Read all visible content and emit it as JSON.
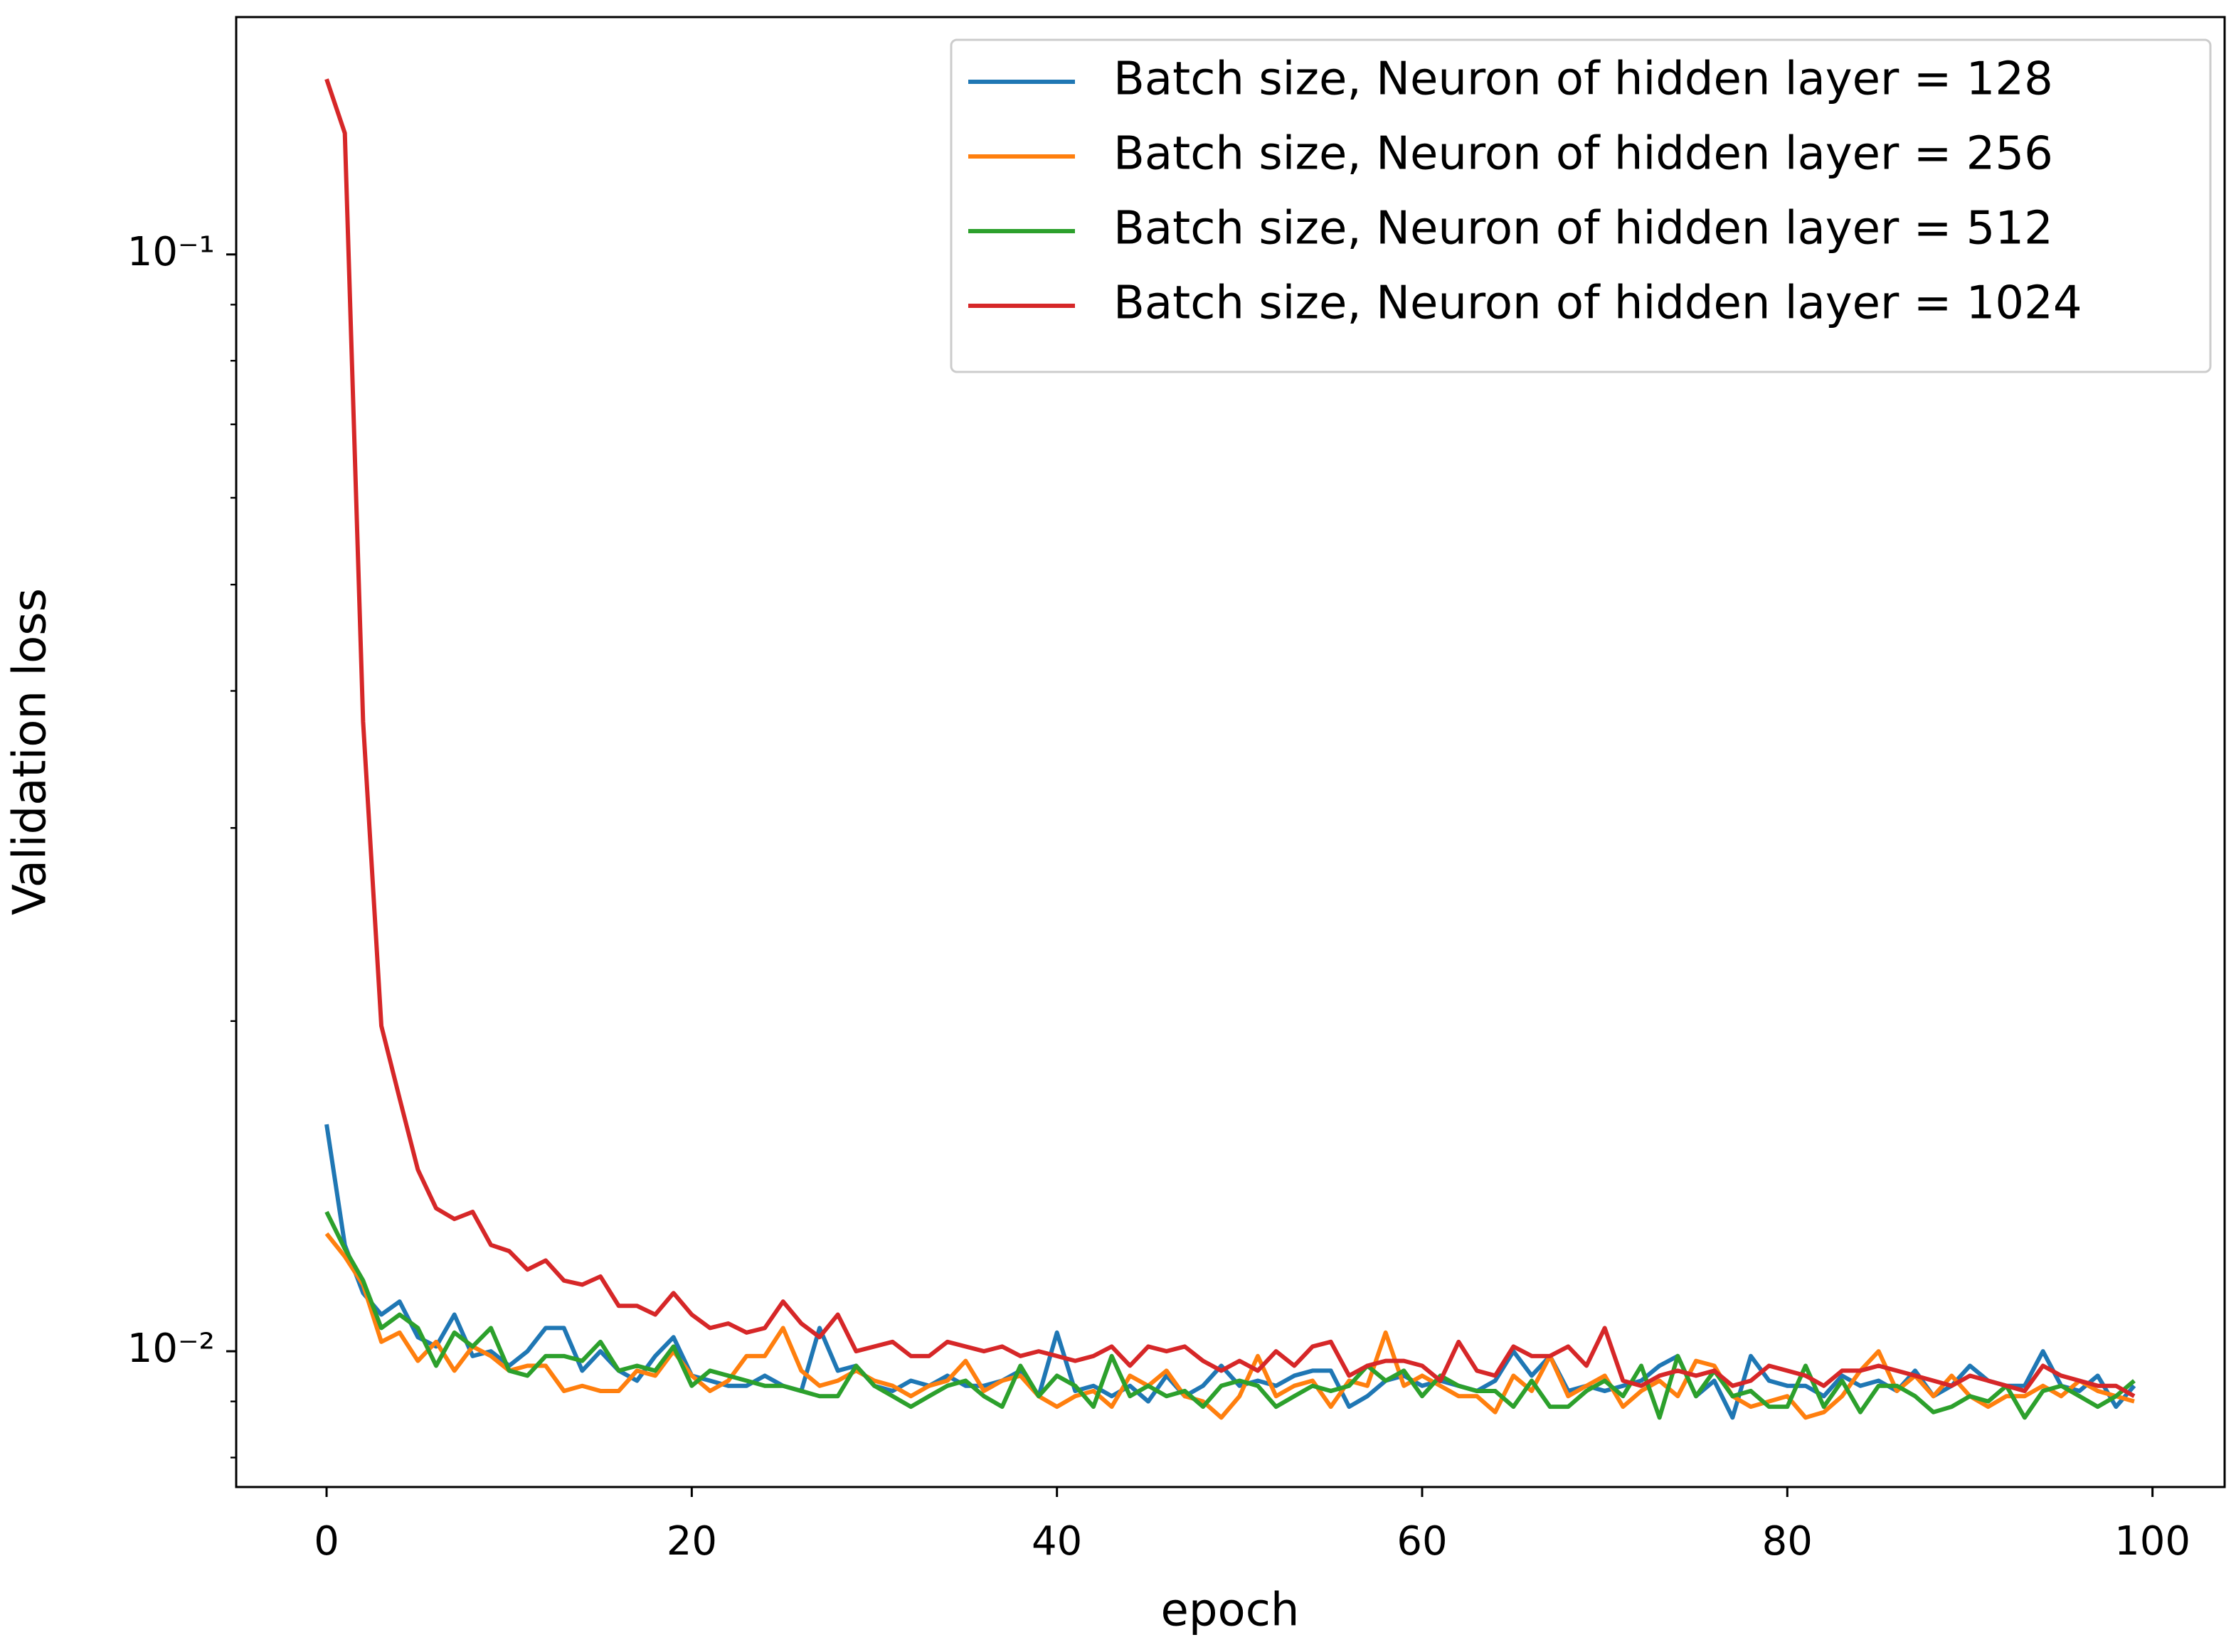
{
  "chart_data": {
    "type": "line",
    "x_label": "epoch",
    "y_label": "Validation loss",
    "log_y": true,
    "grid": false,
    "legend_loc": "upper right",
    "xlim": [
      -4.95,
      103.95
    ],
    "xticks": [
      0,
      20,
      40,
      60,
      80,
      100
    ],
    "ylim": [
      0.00752,
      0.1646
    ],
    "yticks": [
      {
        "value": 0.01,
        "label": "10⁻²"
      },
      {
        "value": 0.1,
        "label": "10⁻¹"
      }
    ],
    "minor_yticks": [
      0.008,
      0.009,
      0.02,
      0.03,
      0.04,
      0.05,
      0.06,
      0.07,
      0.08,
      0.09
    ],
    "x": [
      0,
      1,
      2,
      3,
      4,
      5,
      6,
      7,
      8,
      9,
      10,
      11,
      12,
      13,
      14,
      15,
      16,
      17,
      18,
      19,
      20,
      21,
      22,
      23,
      24,
      25,
      26,
      27,
      28,
      29,
      30,
      31,
      32,
      33,
      34,
      35,
      36,
      37,
      38,
      39,
      40,
      41,
      42,
      43,
      44,
      45,
      46,
      47,
      48,
      49,
      50,
      51,
      52,
      53,
      54,
      55,
      56,
      57,
      58,
      59,
      60,
      61,
      62,
      63,
      64,
      65,
      66,
      67,
      68,
      69,
      70,
      71,
      72,
      73,
      74,
      75,
      76,
      77,
      78,
      79,
      80,
      81,
      82,
      83,
      84,
      85,
      86,
      87,
      88,
      89,
      90,
      91,
      92,
      93,
      94,
      95,
      96,
      97,
      98,
      99
    ],
    "series": [
      {
        "name": "Batch size, Neuron of hidden layer = 128",
        "color": "#1f77b4",
        "values": [
          0.0161,
          0.0125,
          0.0113,
          0.0108,
          0.0111,
          0.0103,
          0.0101,
          0.0108,
          0.0099,
          0.01,
          0.0097,
          0.01,
          0.0105,
          0.0105,
          0.0096,
          0.01,
          0.0096,
          0.0094,
          0.0099,
          0.0103,
          0.0095,
          0.0094,
          0.0093,
          0.0093,
          0.0095,
          0.0093,
          0.0092,
          0.0105,
          0.0096,
          0.0097,
          0.0093,
          0.0092,
          0.0094,
          0.0093,
          0.0095,
          0.0093,
          0.0093,
          0.0094,
          0.0096,
          0.0091,
          0.0104,
          0.0092,
          0.0093,
          0.0091,
          0.0093,
          0.009,
          0.0095,
          0.0091,
          0.0093,
          0.0097,
          0.0093,
          0.0094,
          0.0093,
          0.0095,
          0.0096,
          0.0096,
          0.0089,
          0.0091,
          0.0094,
          0.0095,
          0.0093,
          0.0094,
          0.0093,
          0.0092,
          0.0094,
          0.01,
          0.0095,
          0.0099,
          0.0092,
          0.0093,
          0.0092,
          0.0093,
          0.0094,
          0.0097,
          0.0099,
          0.0091,
          0.0094,
          0.0087,
          0.0099,
          0.0094,
          0.0093,
          0.0093,
          0.0091,
          0.0095,
          0.0093,
          0.0094,
          0.0092,
          0.0096,
          0.0091,
          0.0093,
          0.0097,
          0.0094,
          0.0093,
          0.0093,
          0.01,
          0.0093,
          0.0092,
          0.0095,
          0.0089,
          0.0093
        ]
      },
      {
        "name": "Batch size, Neuron of hidden layer = 256",
        "color": "#ff7f0e",
        "values": [
          0.0128,
          0.0122,
          0.0115,
          0.0102,
          0.0104,
          0.0098,
          0.0102,
          0.0096,
          0.0101,
          0.0099,
          0.0096,
          0.0097,
          0.0097,
          0.0092,
          0.0093,
          0.0092,
          0.0092,
          0.0096,
          0.0095,
          0.01,
          0.0095,
          0.0092,
          0.0094,
          0.0099,
          0.0099,
          0.0105,
          0.0096,
          0.0093,
          0.0094,
          0.0096,
          0.0094,
          0.0093,
          0.0091,
          0.0093,
          0.0094,
          0.0098,
          0.0092,
          0.0094,
          0.0095,
          0.0091,
          0.0089,
          0.0091,
          0.0092,
          0.0089,
          0.0095,
          0.0093,
          0.0096,
          0.0091,
          0.009,
          0.0087,
          0.0091,
          0.0099,
          0.0091,
          0.0093,
          0.0094,
          0.0089,
          0.0094,
          0.0093,
          0.0104,
          0.0093,
          0.0095,
          0.0093,
          0.0091,
          0.0091,
          0.0088,
          0.0095,
          0.0092,
          0.0099,
          0.0091,
          0.0093,
          0.0095,
          0.0089,
          0.0092,
          0.0094,
          0.0091,
          0.0098,
          0.0097,
          0.0091,
          0.0089,
          0.009,
          0.0091,
          0.0087,
          0.0088,
          0.0091,
          0.0096,
          0.01,
          0.0092,
          0.0095,
          0.0091,
          0.0095,
          0.0091,
          0.0089,
          0.0091,
          0.0091,
          0.0093,
          0.0091,
          0.0094,
          0.0092,
          0.0091,
          0.009
        ]
      },
      {
        "name": "Batch size, Neuron of hidden layer = 512",
        "color": "#2ca02c",
        "values": [
          0.0134,
          0.0124,
          0.0116,
          0.0105,
          0.0108,
          0.0105,
          0.0097,
          0.0104,
          0.0101,
          0.0105,
          0.0096,
          0.0095,
          0.0099,
          0.0099,
          0.0098,
          0.0102,
          0.0096,
          0.0097,
          0.0096,
          0.0101,
          0.0093,
          0.0096,
          0.0095,
          0.0094,
          0.0093,
          0.0093,
          0.0092,
          0.0091,
          0.0091,
          0.0097,
          0.0093,
          0.0091,
          0.0089,
          0.0091,
          0.0093,
          0.0094,
          0.0091,
          0.0089,
          0.0097,
          0.0091,
          0.0095,
          0.0093,
          0.0089,
          0.0099,
          0.0091,
          0.0093,
          0.0091,
          0.0092,
          0.0089,
          0.0093,
          0.0094,
          0.0093,
          0.0089,
          0.0091,
          0.0093,
          0.0092,
          0.0093,
          0.0097,
          0.0094,
          0.0096,
          0.0091,
          0.0095,
          0.0093,
          0.0092,
          0.0092,
          0.0089,
          0.0094,
          0.0089,
          0.0089,
          0.0092,
          0.0094,
          0.0091,
          0.0097,
          0.0087,
          0.0099,
          0.0091,
          0.0096,
          0.0091,
          0.0092,
          0.0089,
          0.0089,
          0.0097,
          0.0089,
          0.0094,
          0.0088,
          0.0093,
          0.0093,
          0.0091,
          0.0088,
          0.0089,
          0.0091,
          0.009,
          0.0093,
          0.0087,
          0.0092,
          0.0093,
          0.0091,
          0.0089,
          0.0091,
          0.0094
        ]
      },
      {
        "name": "Batch size, Neuron of hidden layer = 1024",
        "color": "#d62728",
        "values": [
          0.1445,
          0.129,
          0.0375,
          0.0198,
          0.017,
          0.01464,
          0.0135,
          0.0132,
          0.0134,
          0.0125,
          0.01234,
          0.01187,
          0.0121,
          0.0116,
          0.0115,
          0.0117,
          0.011,
          0.011,
          0.0108,
          0.0113,
          0.0108,
          0.0105,
          0.0106,
          0.0104,
          0.0105,
          0.0111,
          0.0106,
          0.0103,
          0.0108,
          0.01,
          0.0101,
          0.0102,
          0.0099,
          0.0099,
          0.0102,
          0.0101,
          0.01,
          0.0101,
          0.0099,
          0.01,
          0.0099,
          0.0098,
          0.0099,
          0.0101,
          0.0097,
          0.0101,
          0.01,
          0.0101,
          0.0098,
          0.0096,
          0.0098,
          0.0096,
          0.01,
          0.0097,
          0.0101,
          0.0102,
          0.0095,
          0.0097,
          0.0098,
          0.0098,
          0.0097,
          0.0094,
          0.0102,
          0.0096,
          0.0095,
          0.0101,
          0.0099,
          0.0099,
          0.0101,
          0.0097,
          0.0105,
          0.0094,
          0.0093,
          0.0095,
          0.0096,
          0.0095,
          0.0096,
          0.0093,
          0.0094,
          0.0097,
          0.0096,
          0.0095,
          0.0093,
          0.0096,
          0.0096,
          0.0097,
          0.0096,
          0.0095,
          0.0094,
          0.0093,
          0.0095,
          0.0094,
          0.0093,
          0.0092,
          0.0097,
          0.0095,
          0.0094,
          0.0093,
          0.0093,
          0.0091
        ]
      }
    ]
  }
}
